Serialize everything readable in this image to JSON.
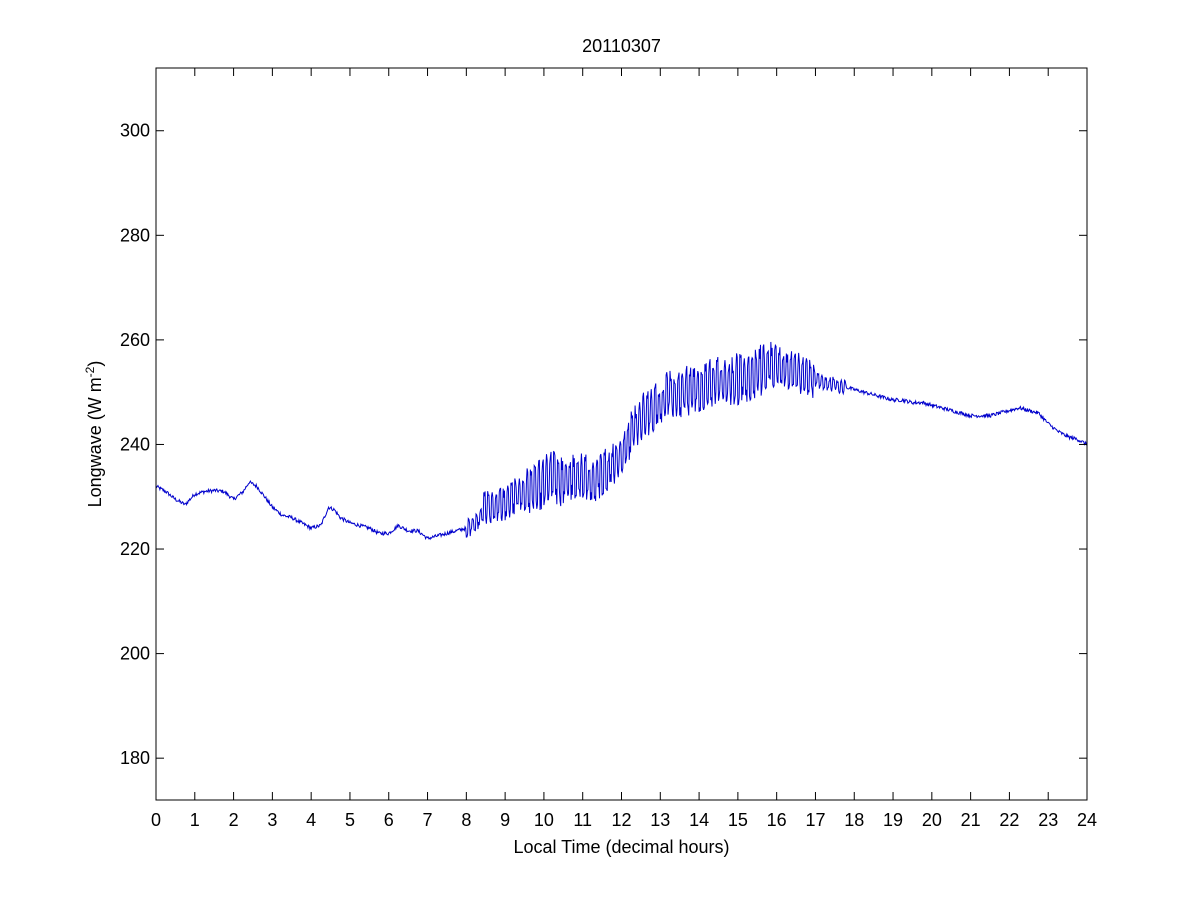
{
  "chart_data": {
    "type": "line",
    "title": "20110307",
    "xlabel": "Local Time (decimal hours)",
    "ylabel": {
      "main": "Longwave (W m",
      "sup": "-2",
      "close": ")"
    },
    "xlim": [
      0,
      24
    ],
    "ylim": [
      172,
      312
    ],
    "xticks": [
      0,
      1,
      2,
      3,
      4,
      5,
      6,
      7,
      8,
      9,
      10,
      11,
      12,
      13,
      14,
      15,
      16,
      17,
      18,
      19,
      20,
      21,
      22,
      23,
      24
    ],
    "yticks": [
      180,
      200,
      220,
      240,
      260,
      280,
      300
    ],
    "grid": false,
    "legend": "none",
    "colors": {
      "line": "#0000cc",
      "axes": "#000000",
      "background": "#ffffff"
    },
    "series": [
      {
        "x": [
          0,
          0.25,
          0.5,
          0.75,
          1,
          1.25,
          1.5,
          1.75,
          2,
          2.25,
          2.4,
          2.6,
          2.75,
          3,
          3.25,
          3.5,
          3.75,
          4,
          4.25,
          4.45,
          4.6,
          4.75,
          5,
          5.25,
          5.5,
          5.75,
          6,
          6.25,
          6.5,
          6.75,
          7,
          7.25,
          7.5,
          7.75,
          8,
          8.25,
          8.5,
          8.75,
          9,
          9.25,
          9.5,
          9.75,
          10,
          10.25,
          10.5,
          10.75,
          11,
          11.25,
          11.5,
          11.75,
          12,
          12.25,
          12.5,
          12.75,
          13,
          13.25,
          13.5,
          13.75,
          14,
          14.25,
          14.5,
          14.75,
          15,
          15.25,
          15.5,
          15.75,
          16,
          16.25,
          16.5,
          16.75,
          17,
          17.25,
          17.5,
          17.75,
          18,
          18.25,
          18.5,
          18.75,
          19,
          19.25,
          19.5,
          19.75,
          20,
          20.25,
          20.5,
          20.75,
          21,
          21.25,
          21.5,
          21.75,
          22,
          22.25,
          22.5,
          22.75,
          23,
          23.25,
          23.5,
          23.75,
          24
        ],
        "y": [
          232,
          231,
          229.5,
          228.5,
          230.5,
          231,
          231.2,
          231,
          229.5,
          231,
          232.8,
          232,
          230.5,
          228,
          226.5,
          226,
          225,
          224,
          224.5,
          228,
          227.5,
          226,
          225,
          224.5,
          224,
          223,
          223,
          224.5,
          223.5,
          223.5,
          222,
          222.5,
          223,
          223.5,
          224,
          225,
          228,
          228.5,
          228.5,
          230,
          230.5,
          231,
          233,
          234,
          232.5,
          234,
          234,
          233,
          234.5,
          236,
          238,
          242,
          245,
          246,
          248,
          250,
          250,
          250.5,
          251,
          252,
          252,
          252,
          252.5,
          253,
          254,
          254.5,
          255,
          254.5,
          254,
          253,
          252.5,
          251.5,
          251.5,
          251,
          250.5,
          250,
          249.5,
          249,
          248.5,
          248.5,
          248,
          248,
          247.5,
          247,
          246.5,
          246,
          245.5,
          245.5,
          245.5,
          246,
          246.5,
          247,
          246.5,
          246,
          244,
          242.5,
          241.5,
          241,
          240
        ]
      }
    ],
    "noise": [
      {
        "range": [
          8.0,
          8.4
        ],
        "amplitude": 2.0
      },
      {
        "range": [
          8.4,
          9.5
        ],
        "amplitude": 3.5
      },
      {
        "range": [
          9.5,
          10.5
        ],
        "amplitude": 5.0
      },
      {
        "range": [
          10.5,
          12.5
        ],
        "amplitude": 4.5
      },
      {
        "range": [
          12.5,
          16.0
        ],
        "amplitude": 5.0
      },
      {
        "range": [
          16.0,
          17.0
        ],
        "amplitude": 4.0
      },
      {
        "range": [
          17.0,
          17.8
        ],
        "amplitude": 1.5
      }
    ]
  }
}
